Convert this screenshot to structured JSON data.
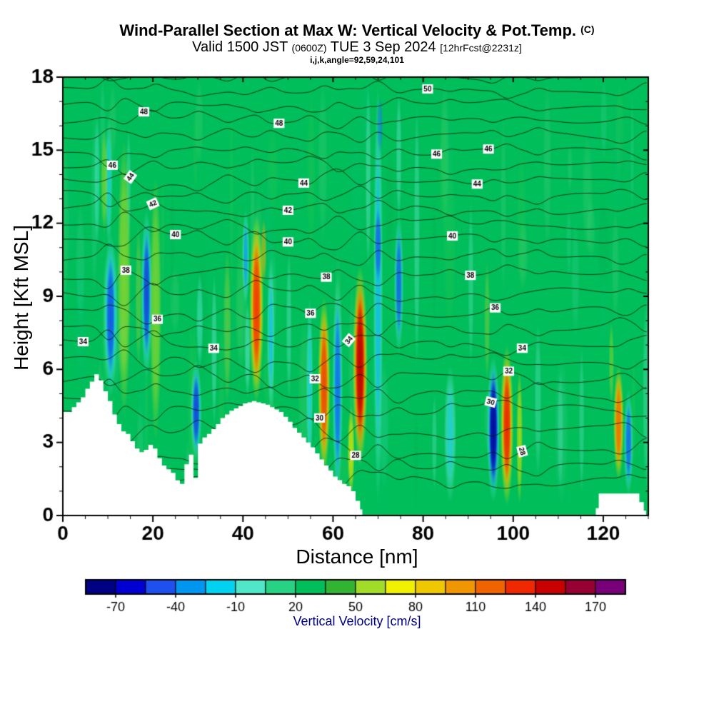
{
  "chart_data": {
    "type": "heatmap",
    "title": "Wind-Parallel Section at Max W: Vertical Velocity & Pot.Temp.",
    "title_units": "(C)",
    "subtitle": {
      "p1": "Valid 1500 JST",
      "p2": "(0600Z)",
      "p3": "TUE 3 Sep 2024",
      "p4": "[12hrFcst@2231z]"
    },
    "info_line": "i,j,k,angle=92,59,24,101",
    "xlabel": "Distance [nm]",
    "ylabel": "Height [Kft MSL]",
    "xlim": [
      0,
      130
    ],
    "ylim": [
      0,
      18
    ],
    "xticks": [
      0,
      20,
      40,
      60,
      80,
      100,
      120
    ],
    "yticks": [
      0,
      3,
      6,
      9,
      12,
      15,
      18
    ],
    "x_minor": 5,
    "y_minor": 1,
    "grid": false,
    "field": {
      "quantity": "vertical velocity",
      "units": "cm/s",
      "base_color": "#00be5a",
      "description": "green background of weak vertical motion with vertical updraft streaks (yellow/orange/red) and downdraft streaks (cyan/blue); white terrain silhouette at bottom"
    },
    "colorbar": {
      "label": "Vertical Velocity [cm/s]",
      "label_color": "#000080",
      "tick_labels": [
        -70,
        -40,
        -10,
        20,
        50,
        80,
        110,
        140,
        170
      ],
      "min": -85,
      "max": 185,
      "step": 15,
      "colors": [
        "#000082",
        "#0000d2",
        "#1e50f0",
        "#0096f0",
        "#00d2f0",
        "#50e6c8",
        "#28d284",
        "#00be5a",
        "#32b432",
        "#a0dc28",
        "#f0f000",
        "#f0c800",
        "#f09600",
        "#f06400",
        "#f02800",
        "#c80000",
        "#960032",
        "#780078"
      ]
    },
    "isentropes": {
      "quantity": "potential temperature",
      "units": "C",
      "min": 26,
      "max": 51,
      "contour_interval": 1,
      "label_interval": 2,
      "height_table": {
        "26": 1.45,
        "28": 2.6,
        "30": 4.35,
        "32": 5.65,
        "34": 7.05,
        "36": 8.35,
        "38": 9.9,
        "40": 11.35,
        "42": 12.55,
        "44": 13.75,
        "46": 14.95,
        "48": 16.25,
        "50": 17.45,
        "52": 18.65
      },
      "levels_labeled": [
        {
          "v": 28,
          "labels": [
            {
              "x": 65,
              "rot": 0
            },
            {
              "x": 102,
              "rot": 75
            }
          ]
        },
        {
          "v": 30,
          "labels": [
            {
              "x": 57,
              "rot": 0
            },
            {
              "x": 95,
              "rot": 15
            }
          ]
        },
        {
          "v": 32,
          "labels": [
            {
              "x": 56,
              "rot": 0
            },
            {
              "x": 99,
              "rot": 0
            }
          ]
        },
        {
          "v": 34,
          "labels": [
            {
              "x": 4.5,
              "rot": 0
            },
            {
              "x": 33.5,
              "rot": 0
            },
            {
              "x": 63.5,
              "rot": -50
            },
            {
              "x": 102,
              "rot": 0
            }
          ]
        },
        {
          "v": 36,
          "labels": [
            {
              "x": 21,
              "rot": 0
            },
            {
              "x": 55,
              "rot": 0
            },
            {
              "x": 96,
              "rot": 0
            }
          ]
        },
        {
          "v": 38,
          "labels": [
            {
              "x": 14,
              "rot": 0
            },
            {
              "x": 58.5,
              "rot": 0
            },
            {
              "x": 90.5,
              "rot": 0
            }
          ]
        },
        {
          "v": 40,
          "labels": [
            {
              "x": 25,
              "rot": 0
            },
            {
              "x": 50,
              "rot": 0
            },
            {
              "x": 86.5,
              "rot": 0
            }
          ]
        },
        {
          "v": 42,
          "labels": [
            {
              "x": 20,
              "rot": -25
            },
            {
              "x": 50,
              "rot": 0
            }
          ]
        },
        {
          "v": 44,
          "labels": [
            {
              "x": 15,
              "rot": -55
            },
            {
              "x": 53.5,
              "rot": 0
            },
            {
              "x": 92,
              "rot": 0
            }
          ]
        },
        {
          "v": 46,
          "labels": [
            {
              "x": 11,
              "rot": 0
            },
            {
              "x": 83,
              "rot": 0
            },
            {
              "x": 94.5,
              "rot": 0
            }
          ]
        },
        {
          "v": 48,
          "labels": [
            {
              "x": 18,
              "rot": 0
            },
            {
              "x": 48,
              "rot": 0
            }
          ]
        },
        {
          "v": 50,
          "labels": [
            {
              "x": 81,
              "rot": 0
            }
          ]
        }
      ]
    },
    "terrain_kft": [
      [
        [
          0,
          4.25
        ],
        [
          1,
          4.25
        ],
        [
          2,
          4.45
        ],
        [
          3,
          4.65
        ],
        [
          4,
          4.85
        ],
        [
          5,
          5.2
        ],
        [
          6,
          5.5
        ],
        [
          7,
          5.8
        ],
        [
          8,
          5.55
        ],
        [
          9,
          5.1
        ],
        [
          10,
          4.7
        ],
        [
          11,
          4.15
        ],
        [
          12,
          3.75
        ],
        [
          13,
          3.45
        ],
        [
          14,
          3.35
        ],
        [
          15,
          3.05
        ],
        [
          16,
          2.75
        ],
        [
          17,
          2.6
        ],
        [
          18,
          2.7
        ],
        [
          19,
          2.9
        ],
        [
          20,
          2.75
        ],
        [
          21,
          2.35
        ],
        [
          22,
          2.05
        ],
        [
          23,
          1.9
        ],
        [
          24,
          1.75
        ],
        [
          25,
          1.45
        ],
        [
          26,
          1.3
        ],
        [
          27,
          2.1
        ],
        [
          28,
          2.5
        ],
        [
          29,
          1.55
        ],
        [
          30,
          2.95
        ],
        [
          31,
          3.2
        ],
        [
          32,
          3.35
        ],
        [
          33,
          3.55
        ],
        [
          34,
          3.75
        ],
        [
          35,
          4.0
        ],
        [
          36,
          4.15
        ],
        [
          37,
          4.3
        ],
        [
          38,
          4.4
        ],
        [
          39,
          4.5
        ],
        [
          40,
          4.6
        ],
        [
          41,
          4.65
        ],
        [
          42,
          4.7
        ],
        [
          43,
          4.65
        ],
        [
          44,
          4.6
        ],
        [
          45,
          4.55
        ],
        [
          46,
          4.45
        ],
        [
          47,
          4.35
        ],
        [
          48,
          4.25
        ],
        [
          49,
          4.05
        ],
        [
          50,
          3.85
        ],
        [
          51,
          3.6
        ],
        [
          52,
          3.4
        ],
        [
          53,
          3.2
        ],
        [
          54,
          3.0
        ],
        [
          55,
          2.8
        ],
        [
          56,
          2.55
        ],
        [
          57,
          2.3
        ],
        [
          58,
          2.05
        ],
        [
          59,
          1.85
        ],
        [
          60,
          1.6
        ],
        [
          61,
          1.45
        ],
        [
          62,
          1.3
        ],
        [
          63,
          1.2
        ],
        [
          64,
          1.0
        ],
        [
          65,
          0.6
        ],
        [
          66,
          0.25
        ],
        [
          66.5,
          0
        ]
      ],
      [
        [
          118.5,
          0.3
        ],
        [
          119,
          0.9
        ],
        [
          127.5,
          0.9
        ],
        [
          128,
          0.55
        ],
        [
          129,
          0.2
        ],
        [
          129.5,
          0
        ]
      ]
    ],
    "downdrafts": [
      {
        "x": 10.6,
        "w": 3.2,
        "h0": 4.8,
        "h1": 11.6,
        "layers": [
          [
            "#50e6c8",
            0.9
          ],
          [
            "#00b4f0",
            0.9
          ],
          [
            "#1846e0",
            0.85
          ]
        ]
      },
      {
        "x": 10.2,
        "w": 1.8,
        "h0": 11.0,
        "h1": 16.5,
        "layers": [
          [
            "#50e6c8",
            0.6
          ],
          [
            "#00c8f0",
            0.45
          ]
        ]
      },
      {
        "x": 18.6,
        "w": 2.6,
        "h0": 5.6,
        "h1": 12.6,
        "layers": [
          [
            "#50e6c8",
            0.9
          ],
          [
            "#00a0f0",
            0.85
          ],
          [
            "#1432d2",
            0.8
          ]
        ]
      },
      {
        "x": 29.6,
        "w": 2.6,
        "h0": 2.2,
        "h1": 6.4,
        "layers": [
          [
            "#50e6c8",
            0.85
          ],
          [
            "#00a0f0",
            0.85
          ],
          [
            "#1432d2",
            0.8
          ]
        ]
      },
      {
        "x": 30.4,
        "w": 1.6,
        "h0": 6.0,
        "h1": 10.0,
        "layers": [
          [
            "#50e6c8",
            0.6
          ]
        ]
      },
      {
        "x": 40.6,
        "w": 1.7,
        "h0": 8.6,
        "h1": 12.6,
        "layers": [
          [
            "#50e6c8",
            0.8
          ],
          [
            "#0096f0",
            0.75
          ]
        ]
      },
      {
        "x": 41.0,
        "w": 1.4,
        "h0": 4.8,
        "h1": 8.8,
        "layers": [
          [
            "#64e6c8",
            0.6
          ]
        ]
      },
      {
        "x": 46.2,
        "w": 1.8,
        "h0": 4.2,
        "h1": 10.6,
        "layers": [
          [
            "#50e6c8",
            0.8
          ],
          [
            "#00b4f0",
            0.6
          ]
        ]
      },
      {
        "x": 54.8,
        "w": 1.6,
        "h0": 1.6,
        "h1": 9.0,
        "layers": [
          [
            "#50e6c8",
            0.7
          ],
          [
            "#00c8f0",
            0.5
          ]
        ]
      },
      {
        "x": 61.0,
        "w": 2.4,
        "h0": 0.6,
        "h1": 9.8,
        "layers": [
          [
            "#50e6c8",
            0.85
          ],
          [
            "#00a0f0",
            0.8
          ],
          [
            "#1450e8",
            0.6
          ]
        ]
      },
      {
        "x": 70.0,
        "w": 2.2,
        "h0": 0.4,
        "h1": 17.8,
        "layers": [
          [
            "#50e6c8",
            0.8
          ],
          [
            "#00b4f0",
            0.7
          ]
        ]
      },
      {
        "x": 70.0,
        "w": 1.5,
        "h0": 9.6,
        "h1": 12.6,
        "layers": [
          [
            "#1450e8",
            0.75
          ]
        ]
      },
      {
        "x": 70.4,
        "w": 1.3,
        "h0": 14.8,
        "h1": 17.2,
        "layers": [
          [
            "#1878f0",
            0.6
          ]
        ]
      },
      {
        "x": 74.6,
        "w": 2.2,
        "h0": 6.6,
        "h1": 12.4,
        "layers": [
          [
            "#50e6c8",
            0.8
          ],
          [
            "#0096f0",
            0.75
          ],
          [
            "#1432d2",
            0.5
          ]
        ]
      },
      {
        "x": 74.6,
        "w": 1.3,
        "h0": 12.0,
        "h1": 17.5,
        "layers": [
          [
            "#64e6c8",
            0.5
          ]
        ]
      },
      {
        "x": 86.0,
        "w": 2.8,
        "h0": 0.5,
        "h1": 6.2,
        "layers": [
          [
            "#64e6c8",
            0.7
          ],
          [
            "#00c8f0",
            0.5
          ]
        ]
      },
      {
        "x": 95.6,
        "w": 3.0,
        "h0": 0.5,
        "h1": 6.6,
        "layers": [
          [
            "#50e6c8",
            0.9
          ],
          [
            "#00a0f0",
            0.9
          ],
          [
            "#1432d2",
            0.95
          ],
          [
            "#000896",
            0.9
          ]
        ]
      },
      {
        "x": 125.6,
        "w": 2.2,
        "h0": 0.8,
        "h1": 5.2,
        "layers": [
          [
            "#50e6c8",
            0.8
          ],
          [
            "#00a0f0",
            0.75
          ],
          [
            "#1846e0",
            0.6
          ]
        ]
      },
      {
        "x": 33.6,
        "w": 1.3,
        "h0": 3.6,
        "h1": 10.0,
        "layers": [
          [
            "#64e6c8",
            0.5
          ]
        ]
      },
      {
        "x": 50.2,
        "w": 1.3,
        "h0": 4.6,
        "h1": 11.0,
        "layers": [
          [
            "#64e6c8",
            0.45
          ]
        ]
      },
      {
        "x": 78.6,
        "w": 1.4,
        "h0": 6.0,
        "h1": 17.0,
        "layers": [
          [
            "#64e6c8",
            0.45
          ]
        ]
      },
      {
        "x": 105.5,
        "w": 1.6,
        "h0": 1.5,
        "h1": 8.0,
        "layers": [
          [
            "#64e6c8",
            0.4
          ]
        ]
      },
      {
        "x": 90.6,
        "w": 1.3,
        "h0": 6.0,
        "h1": 13.0,
        "layers": [
          [
            "#64e6c8",
            0.4
          ]
        ]
      },
      {
        "x": 7.6,
        "w": 1.4,
        "h0": 11.0,
        "h1": 16.6,
        "layers": [
          [
            "#50e6c8",
            0.55
          ]
        ]
      },
      {
        "x": 14.6,
        "w": 1.1,
        "h0": 11.0,
        "h1": 16.0,
        "layers": [
          [
            "#64e6c8",
            0.4
          ]
        ]
      },
      {
        "x": 67.8,
        "w": 1.3,
        "h0": 10.0,
        "h1": 17.8,
        "layers": [
          [
            "#64e6c8",
            0.5
          ]
        ]
      },
      {
        "x": 110.5,
        "w": 1.4,
        "h0": 1.0,
        "h1": 6.0,
        "layers": [
          [
            "#6ee8cc",
            0.35
          ]
        ]
      },
      {
        "x": 115.2,
        "w": 1.3,
        "h0": 0.8,
        "h1": 7.0,
        "layers": [
          [
            "#6ee8cc",
            0.35
          ]
        ]
      },
      {
        "x": 129.5,
        "w": 1.6,
        "h0": 1.0,
        "h1": 9.0,
        "layers": [
          [
            "#64e6c8",
            0.4
          ]
        ]
      },
      {
        "x": 82.5,
        "w": 1.2,
        "h0": 1.0,
        "h1": 5.0,
        "layers": [
          [
            "#6ee8cc",
            0.35
          ]
        ]
      }
    ],
    "updrafts": [
      {
        "x": 13.6,
        "w": 3.0,
        "h0": 4.0,
        "h1": 15.5,
        "layers": [
          [
            "#a0dc28",
            0.75
          ]
        ]
      },
      {
        "x": 20.6,
        "w": 2.6,
        "h0": 3.0,
        "h1": 14.0,
        "layers": [
          [
            "#a0dc28",
            0.7
          ]
        ]
      },
      {
        "x": 9.2,
        "w": 1.6,
        "h0": 11.5,
        "h1": 16.0,
        "layers": [
          [
            "#a0dc28",
            0.6
          ]
        ]
      },
      {
        "x": 16.8,
        "w": 1.5,
        "h0": 6.0,
        "h1": 12.0,
        "layers": [
          [
            "#8cd23c",
            0.5
          ]
        ]
      },
      {
        "x": 36.5,
        "w": 1.8,
        "h0": 4.5,
        "h1": 11.0,
        "layers": [
          [
            "#8cd23c",
            0.55
          ]
        ]
      },
      {
        "x": 43.0,
        "w": 3.2,
        "h0": 4.6,
        "h1": 12.4,
        "layers": [
          [
            "#e8e800",
            0.95
          ],
          [
            "#f0a000",
            0.9
          ],
          [
            "#f03200",
            0.9
          ]
        ]
      },
      {
        "x": 44.6,
        "w": 1.3,
        "h0": 9.5,
        "h1": 12.2,
        "layers": [
          [
            "#f0b400",
            0.6
          ]
        ]
      },
      {
        "x": 58.0,
        "w": 2.8,
        "h0": 1.6,
        "h1": 9.0,
        "layers": [
          [
            "#e8e800",
            0.95
          ],
          [
            "#f09600",
            0.9
          ],
          [
            "#e83200",
            0.75
          ]
        ]
      },
      {
        "x": 66.0,
        "w": 3.4,
        "h0": 2.0,
        "h1": 10.3,
        "layers": [
          [
            "#e8e800",
            0.95
          ],
          [
            "#f09600",
            0.95
          ],
          [
            "#f03200",
            0.95
          ],
          [
            "#b40000",
            0.9
          ]
        ]
      },
      {
        "x": 64.0,
        "w": 1.6,
        "h0": 0.8,
        "h1": 4.5,
        "layers": [
          [
            "#e8e800",
            0.8
          ]
        ]
      },
      {
        "x": 98.6,
        "w": 3.0,
        "h0": 0.4,
        "h1": 7.0,
        "layers": [
          [
            "#e8e800",
            0.95
          ],
          [
            "#f09600",
            0.9
          ],
          [
            "#e81e00",
            0.9
          ]
        ]
      },
      {
        "x": 101.4,
        "w": 1.4,
        "h0": 0.4,
        "h1": 6.0,
        "layers": [
          [
            "#d8e400",
            0.7
          ]
        ]
      },
      {
        "x": 123.4,
        "w": 2.4,
        "h0": 1.4,
        "h1": 6.2,
        "layers": [
          [
            "#e0e400",
            0.85
          ],
          [
            "#f0a000",
            0.8
          ],
          [
            "#f04600",
            0.55
          ]
        ]
      },
      {
        "x": 121.8,
        "w": 1.2,
        "h0": 4.5,
        "h1": 8.0,
        "layers": [
          [
            "#a0dc28",
            0.5
          ]
        ]
      },
      {
        "x": 94.2,
        "w": 1.3,
        "h0": 5.5,
        "h1": 10.5,
        "layers": [
          [
            "#9cd434",
            0.45
          ]
        ]
      }
    ],
    "texture": {
      "seed": 12,
      "count": 80,
      "colors": [
        [
          "#46d24b",
          0.2
        ],
        [
          "#7fe08c",
          0.18
        ],
        [
          "#57e0b4",
          0.2
        ],
        [
          "#00c8a0",
          0.12
        ],
        [
          "#00a84e",
          0.22
        ]
      ]
    }
  }
}
